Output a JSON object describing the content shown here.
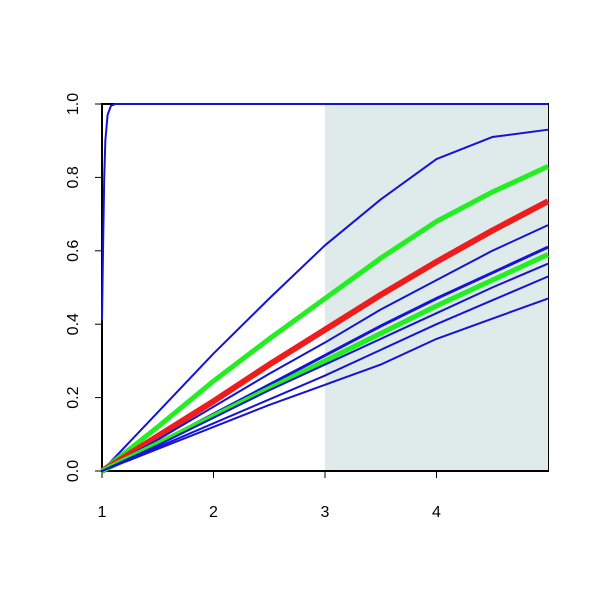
{
  "chart_data": {
    "type": "line",
    "x": [
      1,
      1.5,
      2,
      2.5,
      3,
      3.5,
      4,
      4.5,
      5
    ],
    "xlim": [
      1,
      5
    ],
    "ylim": [
      0,
      1
    ],
    "xticks": [
      1,
      2,
      3,
      4
    ],
    "yticks": [
      {
        "value": 0,
        "label": "0.0"
      },
      0.2,
      0.4,
      0.6,
      0.8,
      {
        "value": 1,
        "label": "1.0"
      }
    ],
    "highlight_x": [
      3,
      5
    ],
    "highlight_color": "#dfeaea",
    "series": [
      {
        "color": "#1414d2",
        "line_width": 2,
        "x": [
          1,
          1.01,
          1.02,
          1.03,
          1.05,
          1.08,
          1.12,
          2,
          3,
          4,
          5
        ],
        "values": [
          0.41,
          0.62,
          0.8,
          0.9,
          0.97,
          0.995,
          1,
          1,
          1,
          1,
          1
        ]
      },
      {
        "color": "#1414d2",
        "line_width": 2,
        "values": [
          0,
          0.16,
          0.32,
          0.47,
          0.615,
          0.74,
          0.85,
          0.91,
          0.93
        ]
      },
      {
        "color": "#22ee22",
        "line_width": 5,
        "values": [
          0,
          0.12,
          0.245,
          0.36,
          0.47,
          0.58,
          0.68,
          0.76,
          0.83
        ]
      },
      {
        "color": "#ee1c1c",
        "line_width": 6,
        "values": [
          0,
          0.095,
          0.19,
          0.29,
          0.385,
          0.48,
          0.57,
          0.655,
          0.735
        ]
      },
      {
        "color": "#1414d2",
        "line_width": 2,
        "values": [
          0,
          0.085,
          0.175,
          0.265,
          0.35,
          0.44,
          0.52,
          0.6,
          0.67
        ]
      },
      {
        "color": "#1414d2",
        "line_width": 3,
        "values": [
          0,
          0.075,
          0.155,
          0.235,
          0.315,
          0.395,
          0.47,
          0.54,
          0.61
        ]
      },
      {
        "color": "#22ee22",
        "line_width": 5,
        "values": [
          0,
          0.075,
          0.15,
          0.225,
          0.3,
          0.375,
          0.45,
          0.52,
          0.59
        ]
      },
      {
        "color": "#1414d2",
        "line_width": 2,
        "values": [
          0,
          0.07,
          0.145,
          0.22,
          0.29,
          0.36,
          0.43,
          0.5,
          0.565
        ]
      },
      {
        "color": "#1414d2",
        "line_width": 2,
        "values": [
          0,
          0.065,
          0.13,
          0.195,
          0.26,
          0.33,
          0.4,
          0.465,
          0.53
        ]
      },
      {
        "color": "#1414d2",
        "line_width": 2,
        "values": [
          0,
          0.06,
          0.12,
          0.18,
          0.235,
          0.29,
          0.36,
          0.415,
          0.47
        ]
      }
    ]
  }
}
